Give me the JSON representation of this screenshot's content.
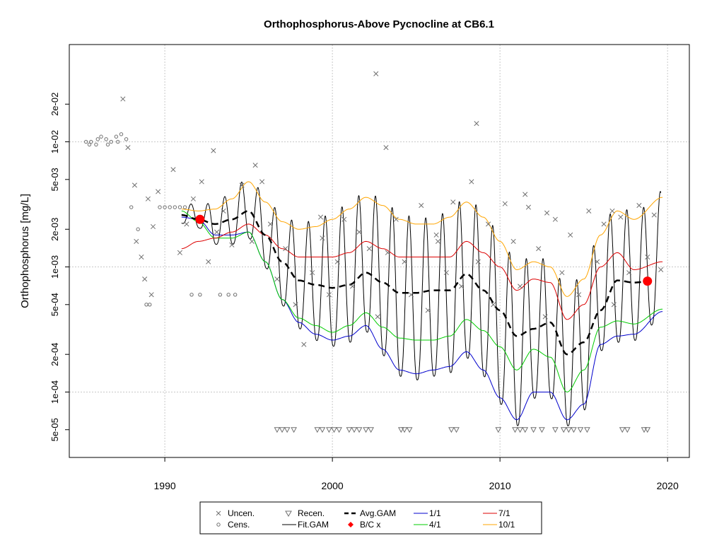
{
  "chart_data": {
    "type": "line",
    "title": "Orthophosphorus-Above Pycnocline at CB6.1",
    "ylabel": "Orthophosphorus [mg/L]",
    "xlabel": "",
    "y_scale": "log",
    "xlim": [
      1984.3,
      2021.3
    ],
    "ylim": [
      3e-05,
      0.0599
    ],
    "x_ticks": [
      1990,
      2000,
      2010,
      2020
    ],
    "y_ticks": [
      {
        "v": 5e-05,
        "label": "5e-05"
      },
      {
        "v": 0.0001,
        "label": "1e-04"
      },
      {
        "v": 0.0002,
        "label": "2e-04"
      },
      {
        "v": 0.0005,
        "label": "5e-04"
      },
      {
        "v": 0.001,
        "label": "1e-03"
      },
      {
        "v": 0.002,
        "label": "2e-03"
      },
      {
        "v": 0.005,
        "label": "5e-03"
      },
      {
        "v": 0.01,
        "label": "1e-02"
      },
      {
        "v": 0.02,
        "label": "2e-02"
      }
    ],
    "grid": true,
    "legend_position": "bottom-center",
    "legend": [
      {
        "label": "Uncen.",
        "marker": "x"
      },
      {
        "label": "Recen.",
        "marker": "triangle-down"
      },
      {
        "label": "Avg.GAM",
        "marker": "dashed-line"
      },
      {
        "label": "1/1",
        "marker": "line",
        "color": "#0000cc"
      },
      {
        "label": "7/1",
        "marker": "line",
        "color": "#dd0000"
      },
      {
        "label": "Cens.",
        "marker": "circle"
      },
      {
        "label": "Fit.GAM",
        "marker": "line",
        "color": "#000000"
      },
      {
        "label": "B/C x",
        "marker": "dot",
        "color": "#ff0000"
      },
      {
        "label": "4/1",
        "marker": "line",
        "color": "#00cc00"
      },
      {
        "label": "10/1",
        "marker": "line",
        "color": "#ffa500"
      }
    ],
    "colors": {
      "jan1": "#0000cc",
      "apr1": "#00cc00",
      "jul1": "#dd0000",
      "oct1": "#ffa500",
      "avg": "#000000",
      "fit": "#000000",
      "bc": "#ff0000",
      "points": "#808080"
    },
    "series": [
      {
        "name": "Avg.GAM",
        "x": [
          1991,
          1992,
          1993,
          1994,
          1995,
          1996,
          1997,
          1998,
          1999,
          2000,
          2001,
          2002,
          2003,
          2004,
          2005,
          2006,
          2007,
          2008,
          2009,
          2010,
          2011,
          2012,
          2013,
          2014,
          2015,
          2016,
          2017,
          2018,
          2019.3
        ],
        "y": [
          0.0026,
          0.0024,
          0.0022,
          0.0024,
          0.0028,
          0.0018,
          0.0011,
          0.00078,
          0.00072,
          0.00068,
          0.00072,
          0.0009,
          0.00075,
          0.00062,
          0.00062,
          0.00065,
          0.00065,
          0.00088,
          0.00065,
          0.00045,
          0.00028,
          0.00032,
          0.00036,
          0.0002,
          0.00025,
          0.00045,
          0.00078,
          0.00075,
          0.00078
        ]
      },
      {
        "name": "1/1",
        "x": [
          1991,
          1992,
          1993,
          1994,
          1995,
          1996,
          1997,
          1998,
          1999,
          2000,
          2001,
          2002,
          2003,
          2004,
          2005,
          2006,
          2007,
          2008,
          2009,
          2010,
          2011,
          2012,
          2013,
          2014,
          2015,
          2016,
          2017,
          2018,
          2019.7
        ],
        "y": [
          0.0025,
          0.0024,
          0.0018,
          0.0018,
          0.0019,
          0.0011,
          0.00055,
          0.00036,
          0.00029,
          0.00026,
          0.00028,
          0.00034,
          0.00022,
          0.00015,
          0.00014,
          0.00015,
          0.00016,
          0.00021,
          0.00015,
          9e-05,
          6e-05,
          0.0001,
          0.0001,
          6e-05,
          8e-05,
          0.00024,
          0.00028,
          0.00029,
          0.00044
        ]
      },
      {
        "name": "4/1",
        "x": [
          1991,
          1992,
          1993,
          1994,
          1995,
          1996,
          1997,
          1998,
          1999,
          2000,
          2001,
          2002,
          2003,
          2004,
          2005,
          2006,
          2007,
          2008,
          2009,
          2010,
          2011,
          2012,
          2013,
          2014,
          2015,
          2016,
          2017,
          2018,
          2019.7
        ],
        "y": [
          0.0028,
          0.0023,
          0.0017,
          0.0017,
          0.0019,
          0.0011,
          0.00055,
          0.00039,
          0.00034,
          0.0003,
          0.00034,
          0.00043,
          0.00033,
          0.00027,
          0.00026,
          0.00026,
          0.00028,
          0.00038,
          0.00031,
          0.00023,
          0.00015,
          0.00022,
          0.00019,
          0.0001,
          0.00015,
          0.00033,
          0.00037,
          0.00035,
          0.00046
        ]
      },
      {
        "name": "7/1",
        "x": [
          1991,
          1992,
          1993,
          1994,
          1995,
          1996,
          1997,
          1998,
          1999,
          2000,
          2001,
          2002,
          2003,
          2004,
          2005,
          2006,
          2007,
          2008,
          2009,
          2010,
          2011,
          2012,
          2013,
          2014,
          2015,
          2016,
          2017,
          2018,
          2019.7
        ],
        "y": [
          0.0014,
          0.0016,
          0.0017,
          0.0019,
          0.0022,
          0.0018,
          0.0014,
          0.0012,
          0.0012,
          0.0012,
          0.0013,
          0.0016,
          0.0014,
          0.0012,
          0.0012,
          0.0012,
          0.0012,
          0.0016,
          0.0013,
          0.001,
          0.00065,
          0.0008,
          0.00075,
          0.00038,
          0.0005,
          0.001,
          0.0013,
          0.00095,
          0.0011
        ]
      },
      {
        "name": "10/1",
        "x": [
          1991,
          1992,
          1993,
          1994,
          1995,
          1996,
          1997,
          1998,
          1999,
          2000,
          2001,
          2002,
          2003,
          2004,
          2005,
          2006,
          2007,
          2008,
          2009,
          2010,
          2011,
          2012,
          2013,
          2014,
          2015,
          2016,
          2017,
          2018,
          2019.7
        ],
        "y": [
          0.0029,
          0.0028,
          0.0029,
          0.0035,
          0.0048,
          0.0033,
          0.0023,
          0.002,
          0.0021,
          0.0024,
          0.0029,
          0.0036,
          0.0031,
          0.0024,
          0.0022,
          0.0022,
          0.0025,
          0.0033,
          0.0025,
          0.0016,
          0.00095,
          0.0011,
          0.001,
          0.00058,
          0.0008,
          0.0018,
          0.0028,
          0.0024,
          0.0036
        ]
      },
      {
        "name": "B/C x",
        "x": [
          1992.1,
          2018.8
        ],
        "y": [
          0.0024,
          0.00077
        ]
      },
      {
        "name": "Uncen.",
        "x": [
          1987.5,
          1987.8,
          1988.2,
          1988.6,
          1989.2,
          1989.6,
          1988.8,
          1989.0,
          1990.5,
          1991.3,
          1991.7,
          1992.2,
          1992.6,
          1993.1,
          1993.5,
          1994.0,
          1994.6,
          1995.2,
          1995.8,
          1996.3,
          1996.7,
          1997.2,
          1997.8,
          1998.3,
          1998.8,
          1999.4,
          1999.8,
          2000.3,
          2000.7,
          2001.2,
          2001.6,
          2002.2,
          2002.6,
          2002.7,
          2003.2,
          2003.8,
          2004.3,
          2004.7,
          2005.3,
          2005.7,
          2006.3,
          2006.8,
          2007.2,
          2007.7,
          2008.3,
          2008.7,
          2009.3,
          2009.6,
          2010.3,
          2010.8,
          2011.2,
          2011.7,
          2012.3,
          2012.7,
          2013.3,
          2013.7,
          2014.2,
          2014.7,
          2015.3,
          2015.8,
          2016.2,
          2016.8,
          2017.2,
          2017.7,
          2018.3,
          2018.8,
          2019.2,
          2019.6,
          1989.3,
          1988.3,
          1990.9,
          1992.9,
          1995.4,
          1999.3,
          2003.3,
          2006.2,
          2008.6,
          2012.8,
          2016.7,
          2011.5
        ],
        "y": [
          0.022,
          0.009,
          0.0045,
          0.0012,
          0.0006,
          0.004,
          0.0008,
          0.0035,
          0.006,
          0.0022,
          0.0035,
          0.0048,
          0.0011,
          0.0019,
          0.0028,
          0.0015,
          0.0045,
          0.0016,
          0.0048,
          0.0022,
          0.0008,
          0.0014,
          0.0005,
          0.00024,
          0.0009,
          0.0017,
          0.0006,
          0.0011,
          0.0024,
          0.0007,
          0.0019,
          0.0014,
          0.035,
          0.0004,
          0.009,
          0.0024,
          0.0011,
          0.0006,
          0.0031,
          0.00045,
          0.0016,
          0.0009,
          0.0033,
          0.0007,
          0.0048,
          0.0011,
          0.0022,
          0.0005,
          0.0032,
          0.0016,
          0.0007,
          0.003,
          0.0014,
          0.0004,
          0.0024,
          0.0009,
          0.0018,
          0.0006,
          0.0028,
          0.0011,
          0.0022,
          0.0005,
          0.0025,
          0.0009,
          0.0031,
          0.0012,
          0.0026,
          0.00095,
          0.0021,
          0.0016,
          0.0013,
          0.0085,
          0.0065,
          0.0025,
          0.0013,
          0.0018,
          0.014,
          0.0027,
          0.0028,
          0.0038
        ]
      },
      {
        "name": "Cens.",
        "x": [
          1985.3,
          1985.6,
          1985.9,
          1986.2,
          1986.5,
          1986.8,
          1987.1,
          1987.4,
          1987.7,
          1985.5,
          1986.0,
          1986.6,
          1987.2,
          1988.0,
          1988.4,
          1989.7,
          1990.0,
          1990.3,
          1990.6,
          1990.9,
          1991.2,
          1988.9,
          1989.1,
          1991.6,
          1992.1,
          1993.3,
          1994.2,
          1993.8
        ],
        "y": [
          0.01,
          0.01,
          0.0095,
          0.011,
          0.0105,
          0.01,
          0.011,
          0.0115,
          0.0105,
          0.0095,
          0.0105,
          0.0095,
          0.01,
          0.003,
          0.002,
          0.003,
          0.003,
          0.003,
          0.003,
          0.003,
          0.003,
          0.0005,
          0.0005,
          0.0006,
          0.0006,
          0.0006,
          0.0006,
          0.0006
        ]
      },
      {
        "name": "Recen.",
        "x": [
          1996.7,
          1997.0,
          1997.3,
          1997.7,
          1999.1,
          1999.4,
          1999.8,
          2000.1,
          2000.4,
          2001.0,
          2001.3,
          2001.6,
          2002.0,
          2002.3,
          2004.1,
          2004.3,
          2004.6,
          2007.1,
          2007.4,
          2009.9,
          2010.9,
          2011.2,
          2011.5,
          2012.0,
          2012.5,
          2013.3,
          2013.8,
          2014.1,
          2014.4,
          2014.8,
          2015.2,
          2017.3,
          2017.6,
          2018.6,
          2018.8
        ],
        "y": [
          5e-05,
          5e-05,
          5e-05,
          5e-05,
          5e-05,
          5e-05,
          5e-05,
          5e-05,
          5e-05,
          5e-05,
          5e-05,
          5e-05,
          5e-05,
          5e-05,
          5e-05,
          5e-05,
          5e-05,
          5e-05,
          5e-05,
          5e-05,
          5e-05,
          5e-05,
          5e-05,
          5e-05,
          5e-05,
          5e-05,
          5e-05,
          5e-05,
          5e-05,
          5e-05,
          5e-05,
          5e-05,
          5e-05,
          5e-05,
          5e-05
        ]
      }
    ]
  }
}
